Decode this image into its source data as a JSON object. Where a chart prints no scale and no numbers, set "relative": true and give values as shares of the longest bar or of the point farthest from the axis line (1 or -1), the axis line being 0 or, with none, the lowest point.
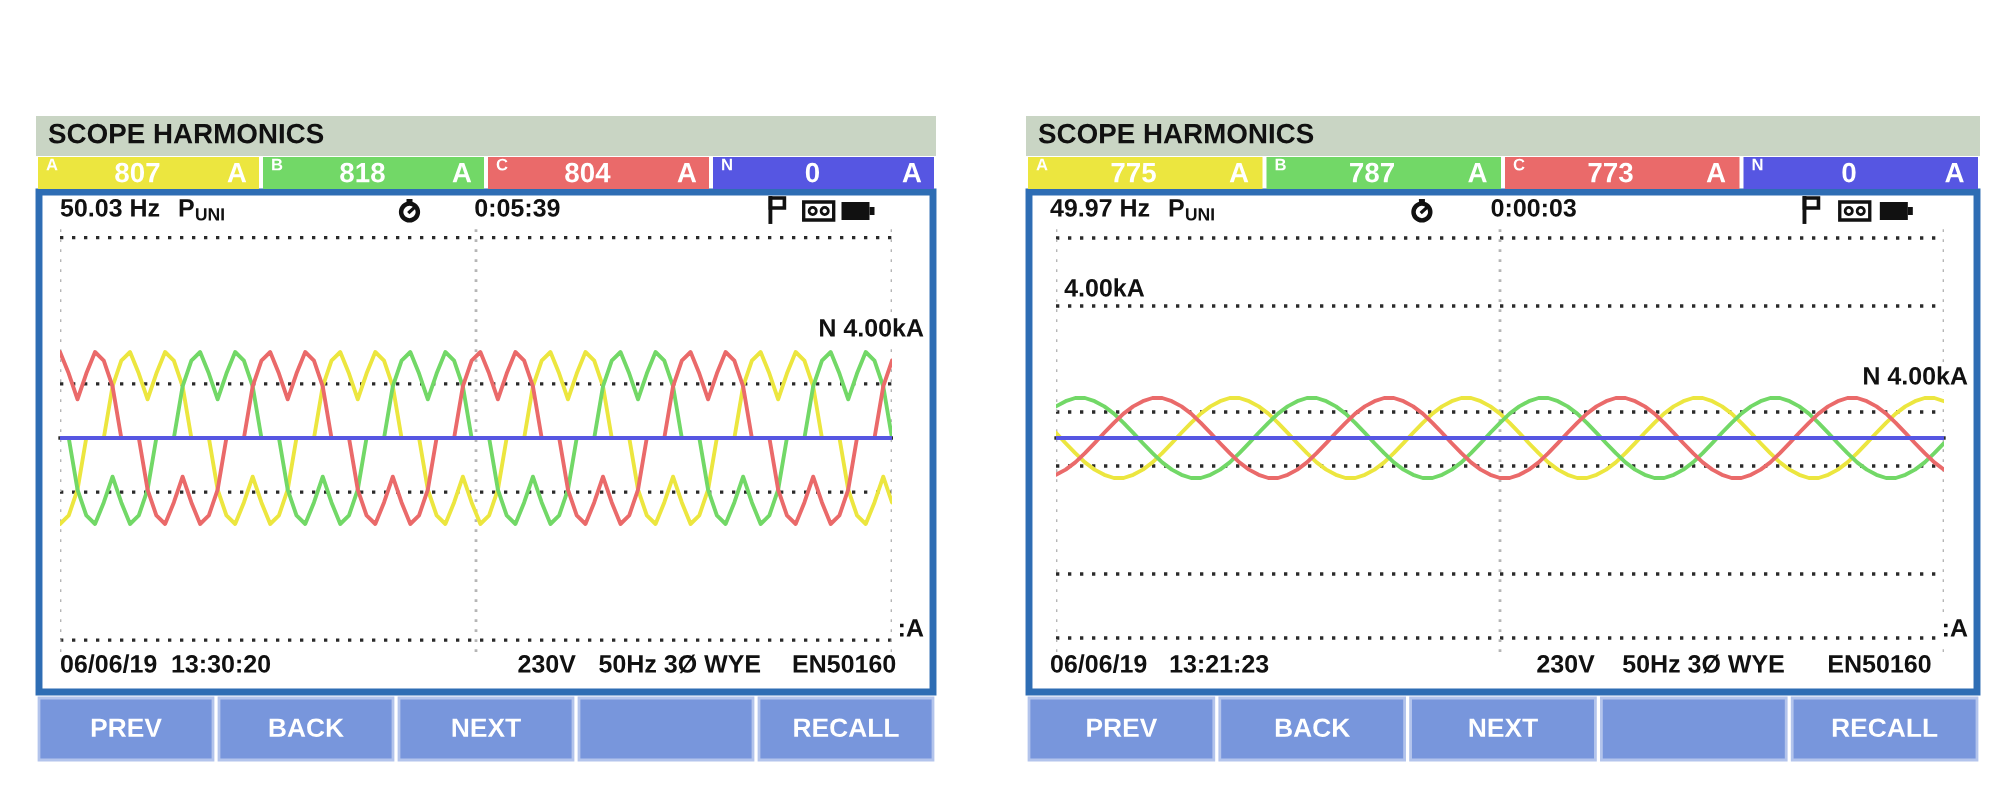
{
  "chart_data": [
    {
      "type": "line",
      "title": "SCOPE HARMONICS",
      "relative": true,
      "grid": "x",
      "legend": "top",
      "categories": [
        null,
        null,
        null,
        null,
        null,
        null,
        null,
        null,
        null,
        null,
        null,
        null,
        null,
        null,
        null,
        null,
        null,
        null,
        null,
        null,
        null,
        null,
        null,
        null,
        null,
        null,
        null,
        null,
        null,
        null,
        null,
        null,
        null,
        null,
        null,
        null,
        null,
        null,
        null,
        null,
        null,
        null,
        null,
        null,
        null,
        null,
        null,
        null,
        null,
        null,
        null,
        null,
        null,
        null,
        null,
        null,
        null,
        null,
        null,
        null,
        null,
        null,
        null,
        null,
        null,
        null,
        null,
        null,
        null,
        null,
        null,
        null,
        null,
        null,
        null,
        null,
        null,
        null,
        null,
        null,
        null,
        null,
        null,
        null,
        null,
        null,
        null,
        null,
        null,
        null,
        null,
        null,
        null,
        null,
        null,
        null
      ],
      "series": [
        {
          "name": "A",
          "color": "#ece63f",
          "values": [
            -1,
            -0.9,
            -0.6,
            0,
            0,
            0,
            0.6,
            0.9,
            1,
            0.75,
            0.45,
            0.75,
            1,
            0.9,
            0.6,
            0,
            0,
            0,
            -0.6,
            -0.9,
            -1,
            -0.75,
            -0.45,
            -0.75,
            -1,
            -0.9,
            -0.6,
            0,
            0,
            0,
            0.6,
            0.9,
            1,
            0.75,
            0.45,
            0.75,
            1,
            0.9,
            0.6,
            0,
            0,
            0,
            -0.6,
            -0.9,
            -1,
            -0.75,
            -0.45,
            -0.75,
            -1,
            -0.9,
            -0.6,
            0,
            0,
            0,
            0.6,
            0.9,
            1,
            0.75,
            0.45,
            0.75,
            1,
            0.9,
            0.6,
            0,
            0,
            0,
            -0.6,
            -0.9,
            -1,
            -0.75,
            -0.45,
            -0.75,
            -1,
            -0.9,
            -0.6,
            0,
            0,
            0,
            0.6,
            0.9,
            1,
            0.75,
            0.45,
            0.75,
            1,
            0.9,
            0.6,
            0,
            0,
            0,
            -0.6,
            -0.9,
            -1,
            -0.75,
            -0.45,
            -0.75
          ]
        },
        {
          "name": "B",
          "color": "#72d867",
          "values": [
            0,
            0,
            -0.6,
            -0.9,
            -1,
            -0.75,
            -0.45,
            -0.75,
            -1,
            -0.9,
            -0.6,
            0,
            0,
            0,
            0.6,
            0.9,
            1,
            0.75,
            0.45,
            0.75,
            1,
            0.9,
            0.6,
            0,
            0,
            0,
            -0.6,
            -0.9,
            -1,
            -0.75,
            -0.45,
            -0.75,
            -1,
            -0.9,
            -0.6,
            0,
            0,
            0,
            0.6,
            0.9,
            1,
            0.75,
            0.45,
            0.75,
            1,
            0.9,
            0.6,
            0,
            0,
            0,
            -0.6,
            -0.9,
            -1,
            -0.75,
            -0.45,
            -0.75,
            -1,
            -0.9,
            -0.6,
            0,
            0,
            0,
            0.6,
            0.9,
            1,
            0.75,
            0.45,
            0.75,
            1,
            0.9,
            0.6,
            0,
            0,
            0,
            -0.6,
            -0.9,
            -1,
            -0.75,
            -0.45,
            -0.75,
            -1,
            -0.9,
            -0.6,
            0,
            0,
            0,
            0.6,
            0.9,
            1,
            0.75,
            0.45,
            0.75,
            1,
            0.9,
            0.6,
            0
          ]
        },
        {
          "name": "C",
          "color": "#ea6a6a",
          "values": [
            1,
            0.75,
            0.45,
            0.75,
            1,
            0.9,
            0.6,
            0,
            0,
            0,
            -0.6,
            -0.9,
            -1,
            -0.75,
            -0.45,
            -0.75,
            -1,
            -0.9,
            -0.6,
            0,
            0,
            0,
            0.6,
            0.9,
            1,
            0.75,
            0.45,
            0.75,
            1,
            0.9,
            0.6,
            0,
            0,
            0,
            -0.6,
            -0.9,
            -1,
            -0.75,
            -0.45,
            -0.75,
            -1,
            -0.9,
            -0.6,
            0,
            0,
            0,
            0.6,
            0.9,
            1,
            0.75,
            0.45,
            0.75,
            1,
            0.9,
            0.6,
            0,
            0,
            0,
            -0.6,
            -0.9,
            -1,
            -0.75,
            -0.45,
            -0.75,
            -1,
            -0.9,
            -0.6,
            0,
            0,
            0,
            0.6,
            0.9,
            1,
            0.75,
            0.45,
            0.75,
            1,
            0.9,
            0.6,
            0,
            0,
            0,
            -0.6,
            -0.9,
            -1,
            -0.75,
            -0.45,
            -0.75,
            -1,
            -0.9,
            -0.6,
            0,
            0,
            0,
            0.6,
            0.9
          ]
        },
        {
          "name": "N",
          "color": "#5656e2",
          "values": [
            0,
            0,
            0,
            0,
            0,
            0,
            0,
            0,
            0,
            0,
            0,
            0,
            0,
            0,
            0,
            0,
            0,
            0,
            0,
            0,
            0,
            0,
            0,
            0,
            0,
            0,
            0,
            0,
            0,
            0,
            0,
            0,
            0,
            0,
            0,
            0,
            0,
            0,
            0,
            0,
            0,
            0,
            0,
            0,
            0,
            0,
            0,
            0,
            0,
            0,
            0,
            0,
            0,
            0,
            0,
            0,
            0,
            0,
            0,
            0,
            0,
            0,
            0,
            0,
            0,
            0,
            0,
            0,
            0,
            0,
            0,
            0,
            0,
            0,
            0,
            0,
            0,
            0,
            0,
            0,
            0,
            0,
            0,
            0,
            0,
            0,
            0,
            0,
            0,
            0,
            0,
            0,
            0,
            0,
            0,
            0
          ]
        }
      ],
      "ref_lines": [
        {
          "axis": "y",
          "value": 2.33,
          "line_style": "dotted",
          "color": "#2a2a2a"
        },
        {
          "axis": "y",
          "value": 0.63,
          "line_style": "dotted",
          "color": "#2a2a2a"
        },
        {
          "axis": "y",
          "value": -0.63,
          "line_style": "dotted",
          "color": "#2a2a2a"
        },
        {
          "axis": "y",
          "value": -2.35,
          "line_style": "dotted",
          "color": "#2a2a2a"
        }
      ],
      "annotations": [
        "807",
        "A",
        "818",
        "A",
        "804",
        "A",
        "0",
        "A",
        "50.03 Hz",
        "P$_{UNI}$",
        "0:05:39",
        "N 4.00kA",
        ":A",
        "06/06/19",
        "13:30:20",
        "230V",
        "50Hz 3Ø WYE",
        "EN50160",
        "PREV",
        "BACK",
        "NEXT",
        "RECALL"
      ]
    },
    {
      "type": "line",
      "title": "SCOPE HARMONICS",
      "relative": true,
      "grid": "x",
      "legend": "top",
      "categories": [
        null,
        null,
        null,
        null,
        null,
        null,
        null,
        null,
        null,
        null,
        null,
        null,
        null,
        null,
        null,
        null,
        null,
        null,
        null,
        null,
        null,
        null,
        null,
        null,
        null,
        null,
        null,
        null,
        null,
        null,
        null,
        null,
        null,
        null,
        null,
        null,
        null,
        null,
        null,
        null,
        null,
        null,
        null,
        null,
        null,
        null,
        null,
        null,
        null,
        null,
        null,
        null,
        null,
        null,
        null,
        null,
        null,
        null,
        null,
        null,
        null,
        null,
        null,
        null,
        null,
        null,
        null,
        null,
        null,
        null,
        null,
        null,
        null,
        null,
        null,
        null,
        null,
        null,
        null,
        null,
        null,
        null,
        null,
        null,
        null,
        null,
        null,
        null,
        null,
        null,
        null,
        null,
        null
      ],
      "series": [
        {
          "name": "A",
          "color": "#ece63f",
          "values": [
            0.13,
            -0.13,
            -0.38,
            -0.61,
            -0.79,
            -0.92,
            -1,
            -1,
            -0.92,
            -0.79,
            -0.61,
            -0.38,
            -0.13,
            0.13,
            0.38,
            0.61,
            0.79,
            0.92,
            1,
            1,
            0.92,
            0.79,
            0.61,
            0.38,
            0.13,
            -0.13,
            -0.38,
            -0.61,
            -0.79,
            -0.92,
            -1,
            -1,
            -0.92,
            -0.79,
            -0.61,
            -0.38,
            -0.13,
            0.13,
            0.38,
            0.61,
            0.79,
            0.92,
            1,
            1,
            0.92,
            0.79,
            0.61,
            0.38,
            0.13,
            -0.13,
            -0.38,
            -0.61,
            -0.79,
            -0.92,
            -1,
            -1,
            -0.92,
            -0.79,
            -0.61,
            -0.38,
            -0.13,
            0.13,
            0.38,
            0.61,
            0.79,
            0.92,
            1,
            1,
            0.92,
            0.79,
            0.61,
            0.38,
            0.13,
            -0.13,
            -0.38,
            -0.61,
            -0.79,
            -0.92,
            -1,
            -1,
            -0.92,
            -0.79,
            -0.61,
            -0.38,
            -0.13,
            0.13,
            0.38,
            0.61,
            0.79,
            0.92,
            1,
            1,
            0.92
          ]
        },
        {
          "name": "B",
          "color": "#72d867",
          "values": [
            0.79,
            0.92,
            1,
            1,
            0.92,
            0.79,
            0.61,
            0.38,
            0.13,
            -0.13,
            -0.38,
            -0.61,
            -0.79,
            -0.92,
            -1,
            -1,
            -0.92,
            -0.79,
            -0.61,
            -0.38,
            -0.13,
            0.13,
            0.38,
            0.61,
            0.79,
            0.92,
            1,
            1,
            0.92,
            0.79,
            0.61,
            0.38,
            0.13,
            -0.13,
            -0.38,
            -0.61,
            -0.79,
            -0.92,
            -1,
            -1,
            -0.92,
            -0.79,
            -0.61,
            -0.38,
            -0.13,
            0.13,
            0.38,
            0.61,
            0.79,
            0.92,
            1,
            1,
            0.92,
            0.79,
            0.61,
            0.38,
            0.13,
            -0.13,
            -0.38,
            -0.61,
            -0.79,
            -0.92,
            -1,
            -1,
            -0.92,
            -0.79,
            -0.61,
            -0.38,
            -0.13,
            0.13,
            0.38,
            0.61,
            0.79,
            0.92,
            1,
            1,
            0.92,
            0.79,
            0.61,
            0.38,
            0.13,
            -0.13,
            -0.38,
            -0.61,
            -0.79,
            -0.92,
            -1,
            -1,
            -0.92,
            -0.79,
            -0.61,
            -0.38,
            -0.13
          ]
        },
        {
          "name": "C",
          "color": "#ea6a6a",
          "values": [
            -0.92,
            -0.79,
            -0.61,
            -0.38,
            -0.13,
            0.13,
            0.38,
            0.61,
            0.79,
            0.92,
            1,
            1,
            0.92,
            0.79,
            0.61,
            0.38,
            0.13,
            -0.13,
            -0.38,
            -0.61,
            -0.79,
            -0.92,
            -1,
            -1,
            -0.92,
            -0.79,
            -0.61,
            -0.38,
            -0.13,
            0.13,
            0.38,
            0.61,
            0.79,
            0.92,
            1,
            1,
            0.92,
            0.79,
            0.61,
            0.38,
            0.13,
            -0.13,
            -0.38,
            -0.61,
            -0.79,
            -0.92,
            -1,
            -1,
            -0.92,
            -0.79,
            -0.61,
            -0.38,
            -0.13,
            0.13,
            0.38,
            0.61,
            0.79,
            0.92,
            1,
            1,
            0.92,
            0.79,
            0.61,
            0.38,
            0.13,
            -0.13,
            -0.38,
            -0.61,
            -0.79,
            -0.92,
            -1,
            -1,
            -0.92,
            -0.79,
            -0.61,
            -0.38,
            -0.13,
            0.13,
            0.38,
            0.61,
            0.79,
            0.92,
            1,
            1,
            0.92,
            0.79,
            0.61,
            0.38,
            0.13,
            -0.13,
            -0.38,
            -0.61,
            -0.79
          ]
        },
        {
          "name": "N",
          "color": "#5656e2",
          "values": [
            0,
            0,
            0,
            0,
            0,
            0,
            0,
            0,
            0,
            0,
            0,
            0,
            0,
            0,
            0,
            0,
            0,
            0,
            0,
            0,
            0,
            0,
            0,
            0,
            0,
            0,
            0,
            0,
            0,
            0,
            0,
            0,
            0,
            0,
            0,
            0,
            0,
            0,
            0,
            0,
            0,
            0,
            0,
            0,
            0,
            0,
            0,
            0,
            0,
            0,
            0,
            0,
            0,
            0,
            0,
            0,
            0,
            0,
            0,
            0,
            0,
            0,
            0,
            0,
            0,
            0,
            0,
            0,
            0,
            0,
            0,
            0,
            0,
            0,
            0,
            0,
            0,
            0,
            0,
            0,
            0,
            0,
            0,
            0,
            0,
            0,
            0,
            0,
            0,
            0,
            0,
            0,
            0
          ]
        }
      ],
      "ref_lines": [
        {
          "axis": "y",
          "value": 5,
          "line_style": "dotted",
          "color": "#2a2a2a"
        },
        {
          "axis": "y",
          "value": 3.3,
          "line_style": "dotted",
          "color": "#2a2a2a"
        },
        {
          "axis": "y",
          "value": 0.65,
          "line_style": "dotted",
          "color": "#2a2a2a"
        },
        {
          "axis": "y",
          "value": -0.7,
          "line_style": "dotted",
          "color": "#2a2a2a"
        },
        {
          "axis": "y",
          "value": -3.4,
          "line_style": "dotted",
          "color": "#2a2a2a"
        },
        {
          "axis": "y",
          "value": -5,
          "line_style": "dotted",
          "color": "#2a2a2a"
        }
      ],
      "annotations": [
        "775",
        "A",
        "787",
        "A",
        "773",
        "A",
        "0",
        "A",
        "49.97 Hz",
        "P$_{UNI}$",
        "0:00:03",
        "N 4.00kA",
        ":A",
        "06/06/19",
        "13:21:23",
        "230V",
        "50Hz 3Ø WYE",
        "EN50160",
        "PREV",
        "BACK",
        "NEXT",
        "RECALL",
        "4.00kA"
      ]
    }
  ]
}
